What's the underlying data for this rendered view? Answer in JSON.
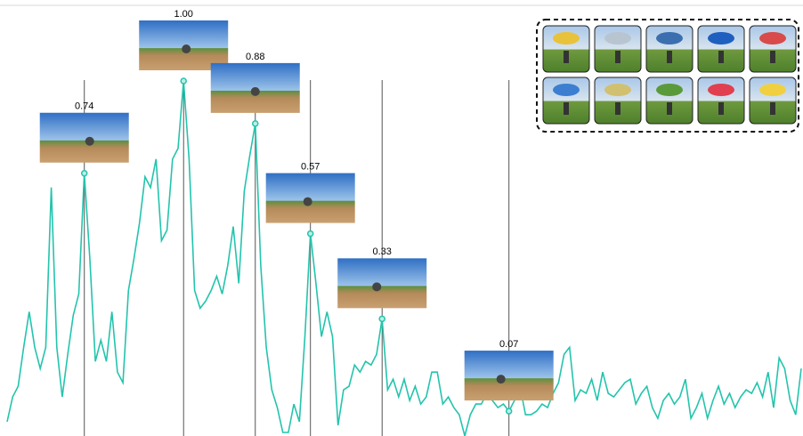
{
  "chart_data": {
    "type": "line",
    "color": "#23c4ad",
    "values": [
      0.04,
      0.11,
      0.14,
      0.25,
      0.35,
      0.25,
      0.19,
      0.25,
      0.7,
      0.25,
      0.11,
      0.23,
      0.34,
      0.4,
      0.74,
      0.5,
      0.21,
      0.27,
      0.21,
      0.35,
      0.18,
      0.15,
      0.41,
      0.5,
      0.6,
      0.73,
      0.7,
      0.78,
      0.55,
      0.58,
      0.78,
      0.81,
      1.0,
      0.78,
      0.41,
      0.36,
      0.38,
      0.41,
      0.45,
      0.4,
      0.48,
      0.59,
      0.43,
      0.69,
      0.79,
      0.88,
      0.48,
      0.25,
      0.13,
      0.08,
      0.01,
      0.01,
      0.09,
      0.04,
      0.28,
      0.57,
      0.43,
      0.28,
      0.35,
      0.28,
      0.03,
      0.13,
      0.14,
      0.2,
      0.18,
      0.21,
      0.2,
      0.23,
      0.33,
      0.13,
      0.16,
      0.11,
      0.16,
      0.1,
      0.14,
      0.09,
      0.11,
      0.18,
      0.18,
      0.09,
      0.11,
      0.08,
      0.06,
      0.0,
      0.06,
      0.09,
      0.09,
      0.12,
      0.1,
      0.08,
      0.09,
      0.07,
      0.1,
      0.14,
      0.06,
      0.06,
      0.07,
      0.09,
      0.08,
      0.12,
      0.15,
      0.23,
      0.25,
      0.1,
      0.13,
      0.12,
      0.16,
      0.1,
      0.18,
      0.12,
      0.11,
      0.13,
      0.15,
      0.16,
      0.09,
      0.12,
      0.14,
      0.08,
      0.05,
      0.1,
      0.12,
      0.09,
      0.11,
      0.16,
      0.05,
      0.08,
      0.12,
      0.05,
      0.1,
      0.14,
      0.09,
      0.12,
      0.08,
      0.11,
      0.13,
      0.12,
      0.15,
      0.11,
      0.18,
      0.08,
      0.22,
      0.19,
      0.1,
      0.06,
      0.19
    ],
    "ylim": [
      0,
      1
    ],
    "highlights": {
      "x": [
        14,
        32,
        45,
        55,
        68,
        91
      ],
      "values": [
        0.74,
        1.0,
        0.88,
        0.57,
        0.33,
        0.07
      ],
      "value_labels": [
        "0.74",
        "1.00",
        "0.88",
        "0.57",
        "0.33",
        "0.07"
      ]
    }
  }
}
